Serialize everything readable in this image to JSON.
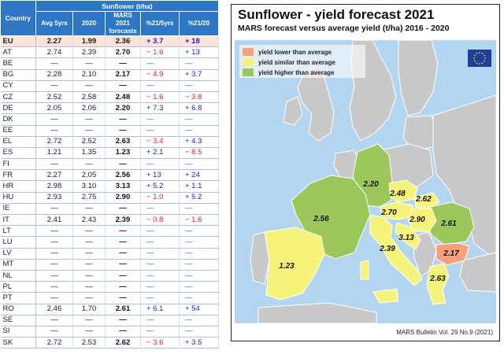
{
  "table": {
    "header_group": "Sunflower (t/ha)",
    "col_country": "Country",
    "col_avg": "Avg 5yrs",
    "col_2020": "2020",
    "col_mars": [
      "MARS",
      "2021",
      "forecasts"
    ],
    "col_p5": "%21/5yrs",
    "col_p20": "%21/20",
    "rows": [
      [
        "EU",
        "2.27",
        "1.99",
        "2.36",
        "+ 3.7",
        "+ 18"
      ],
      [
        "AT",
        "2.74",
        "2.39",
        "2.70",
        "− 1.6",
        "+ 13"
      ],
      [
        "BE",
        "—",
        "—",
        "—",
        "—",
        "—"
      ],
      [
        "BG",
        "2.28",
        "2.10",
        "2.17",
        "− 4.9",
        "+ 3.7"
      ],
      [
        "CY",
        "—",
        "—",
        "—",
        "—",
        "—"
      ],
      [
        "CZ",
        "2.52",
        "2.58",
        "2.48",
        "− 1.6",
        "− 3.8"
      ],
      [
        "DE",
        "2.05",
        "2.06",
        "2.20",
        "+ 7.3",
        "+ 6.8"
      ],
      [
        "DK",
        "—",
        "—",
        "—",
        "—",
        "—"
      ],
      [
        "EE",
        "—",
        "—",
        "—",
        "—",
        "—"
      ],
      [
        "EL",
        "2.72",
        "2.52",
        "2.63",
        "− 3.4",
        "+ 4.3"
      ],
      [
        "ES",
        "1.21",
        "1.35",
        "1.23",
        "+ 2.1",
        "− 8.5"
      ],
      [
        "FI",
        "—",
        "—",
        "—",
        "—",
        "—"
      ],
      [
        "FR",
        "2.27",
        "2.05",
        "2.56",
        "+ 13",
        "+ 24"
      ],
      [
        "HR",
        "2.98",
        "3.10",
        "3.13",
        "+ 5.2",
        "+ 1.1"
      ],
      [
        "HU",
        "2.93",
        "2.75",
        "2.90",
        "− 1.0",
        "+ 5.2"
      ],
      [
        "IE",
        "—",
        "—",
        "—",
        "—",
        "—"
      ],
      [
        "IT",
        "2.41",
        "2.43",
        "2.39",
        "− 0.8",
        "− 1.6"
      ],
      [
        "LT",
        "—",
        "—",
        "—",
        "—",
        "—"
      ],
      [
        "LU",
        "—",
        "—",
        "—",
        "—",
        "—"
      ],
      [
        "LV",
        "—",
        "—",
        "—",
        "—",
        "—"
      ],
      [
        "MT",
        "—",
        "—",
        "—",
        "—",
        "—"
      ],
      [
        "NL",
        "—",
        "—",
        "—",
        "—",
        "—"
      ],
      [
        "PL",
        "—",
        "—",
        "—",
        "—",
        "—"
      ],
      [
        "PT",
        "—",
        "—",
        "—",
        "—",
        "—"
      ],
      [
        "RO",
        "2.46",
        "1.70",
        "2.61",
        "+ 6.1",
        "+ 54"
      ],
      [
        "SE",
        "—",
        "—",
        "—",
        "—",
        "—"
      ],
      [
        "SI",
        "—",
        "—",
        "—",
        "—",
        "—"
      ],
      [
        "SK",
        "2.72",
        "2.53",
        "2.62",
        "− 3.6",
        "+ 3.5"
      ]
    ]
  },
  "map": {
    "title": "Sunflower - yield forecast 2021",
    "subtitle": "MARS forecast versus average yield (t/ha) 2016 - 2020",
    "legend": [
      {
        "label": "yield lower than average",
        "color": "#f7a07c"
      },
      {
        "label": "yield similar than average",
        "color": "#f6f37a"
      },
      {
        "label": "yield higher than average",
        "color": "#9cc75a"
      }
    ],
    "labels": [
      {
        "value": "2.20",
        "country": "DE"
      },
      {
        "value": "2.48",
        "country": "CZ"
      },
      {
        "value": "2.62",
        "country": "SK"
      },
      {
        "value": "2.70",
        "country": "AT"
      },
      {
        "value": "2.90",
        "country": "HU"
      },
      {
        "value": "2.61",
        "country": "RO"
      },
      {
        "value": "2.56",
        "country": "FR"
      },
      {
        "value": "3.13",
        "country": "HR"
      },
      {
        "value": "2.39",
        "country": "IT"
      },
      {
        "value": "2.17",
        "country": "BG"
      },
      {
        "value": "1.23",
        "country": "ES"
      },
      {
        "value": "2.63",
        "country": "EL"
      }
    ],
    "source": "MARS Bulletin Vol. 29 No.9 (2021)",
    "colors": {
      "sea": "#b3d5ef",
      "grey_land": "#c8c8c8",
      "border": "#ffffff",
      "table_header": "#2e77c4",
      "eu_row": "#fbe3d6"
    }
  },
  "chart_data": [
    {
      "type": "table",
      "columns": [
        "Country",
        "Avg 5yrs",
        "2020",
        "MARS 2021 forecasts",
        "%21/5yrs",
        "%21/20"
      ],
      "unit": "t/ha",
      "rows": [
        {
          "country": "EU",
          "avg5": 2.27,
          "y2020": 1.99,
          "mars2021": 2.36,
          "pct5": 3.7,
          "pct20": 18
        },
        {
          "country": "AT",
          "avg5": 2.74,
          "y2020": 2.39,
          "mars2021": 2.7,
          "pct5": -1.6,
          "pct20": 13
        },
        {
          "country": "BG",
          "avg5": 2.28,
          "y2020": 2.1,
          "mars2021": 2.17,
          "pct5": -4.9,
          "pct20": 3.7
        },
        {
          "country": "CZ",
          "avg5": 2.52,
          "y2020": 2.58,
          "mars2021": 2.48,
          "pct5": -1.6,
          "pct20": -3.8
        },
        {
          "country": "DE",
          "avg5": 2.05,
          "y2020": 2.06,
          "mars2021": 2.2,
          "pct5": 7.3,
          "pct20": 6.8
        },
        {
          "country": "EL",
          "avg5": 2.72,
          "y2020": 2.52,
          "mars2021": 2.63,
          "pct5": -3.4,
          "pct20": 4.3
        },
        {
          "country": "ES",
          "avg5": 1.21,
          "y2020": 1.35,
          "mars2021": 1.23,
          "pct5": 2.1,
          "pct20": -8.5
        },
        {
          "country": "FR",
          "avg5": 2.27,
          "y2020": 2.05,
          "mars2021": 2.56,
          "pct5": 13,
          "pct20": 24
        },
        {
          "country": "HR",
          "avg5": 2.98,
          "y2020": 3.1,
          "mars2021": 3.13,
          "pct5": 5.2,
          "pct20": 1.1
        },
        {
          "country": "HU",
          "avg5": 2.93,
          "y2020": 2.75,
          "mars2021": 2.9,
          "pct5": -1.0,
          "pct20": 5.2
        },
        {
          "country": "IT",
          "avg5": 2.41,
          "y2020": 2.43,
          "mars2021": 2.39,
          "pct5": -0.8,
          "pct20": -1.6
        },
        {
          "country": "RO",
          "avg5": 2.46,
          "y2020": 1.7,
          "mars2021": 2.61,
          "pct5": 6.1,
          "pct20": 54
        },
        {
          "country": "SK",
          "avg5": 2.72,
          "y2020": 2.53,
          "mars2021": 2.62,
          "pct5": -3.6,
          "pct20": 3.5
        }
      ]
    },
    {
      "type": "map",
      "title": "Sunflower - yield forecast 2021",
      "subtitle": "MARS forecast versus average yield (t/ha) 2016 - 2020",
      "legend_position": "top-left",
      "categories": [
        "yield lower than average",
        "yield similar than average",
        "yield higher than average"
      ],
      "regions": [
        {
          "country": "DE",
          "value": 2.2,
          "category": "yield higher than average"
        },
        {
          "country": "CZ",
          "value": 2.48,
          "category": "yield similar than average"
        },
        {
          "country": "SK",
          "value": 2.62,
          "category": "yield similar than average"
        },
        {
          "country": "AT",
          "value": 2.7,
          "category": "yield similar than average"
        },
        {
          "country": "HU",
          "value": 2.9,
          "category": "yield similar than average"
        },
        {
          "country": "RO",
          "value": 2.61,
          "category": "yield higher than average"
        },
        {
          "country": "FR",
          "value": 2.56,
          "category": "yield higher than average"
        },
        {
          "country": "HR",
          "value": 3.13,
          "category": "yield similar than average"
        },
        {
          "country": "IT",
          "value": 2.39,
          "category": "yield similar than average"
        },
        {
          "country": "BG",
          "value": 2.17,
          "category": "yield lower than average"
        },
        {
          "country": "ES",
          "value": 1.23,
          "category": "yield similar than average"
        },
        {
          "country": "EL",
          "value": 2.63,
          "category": "yield similar than average"
        }
      ]
    }
  ]
}
